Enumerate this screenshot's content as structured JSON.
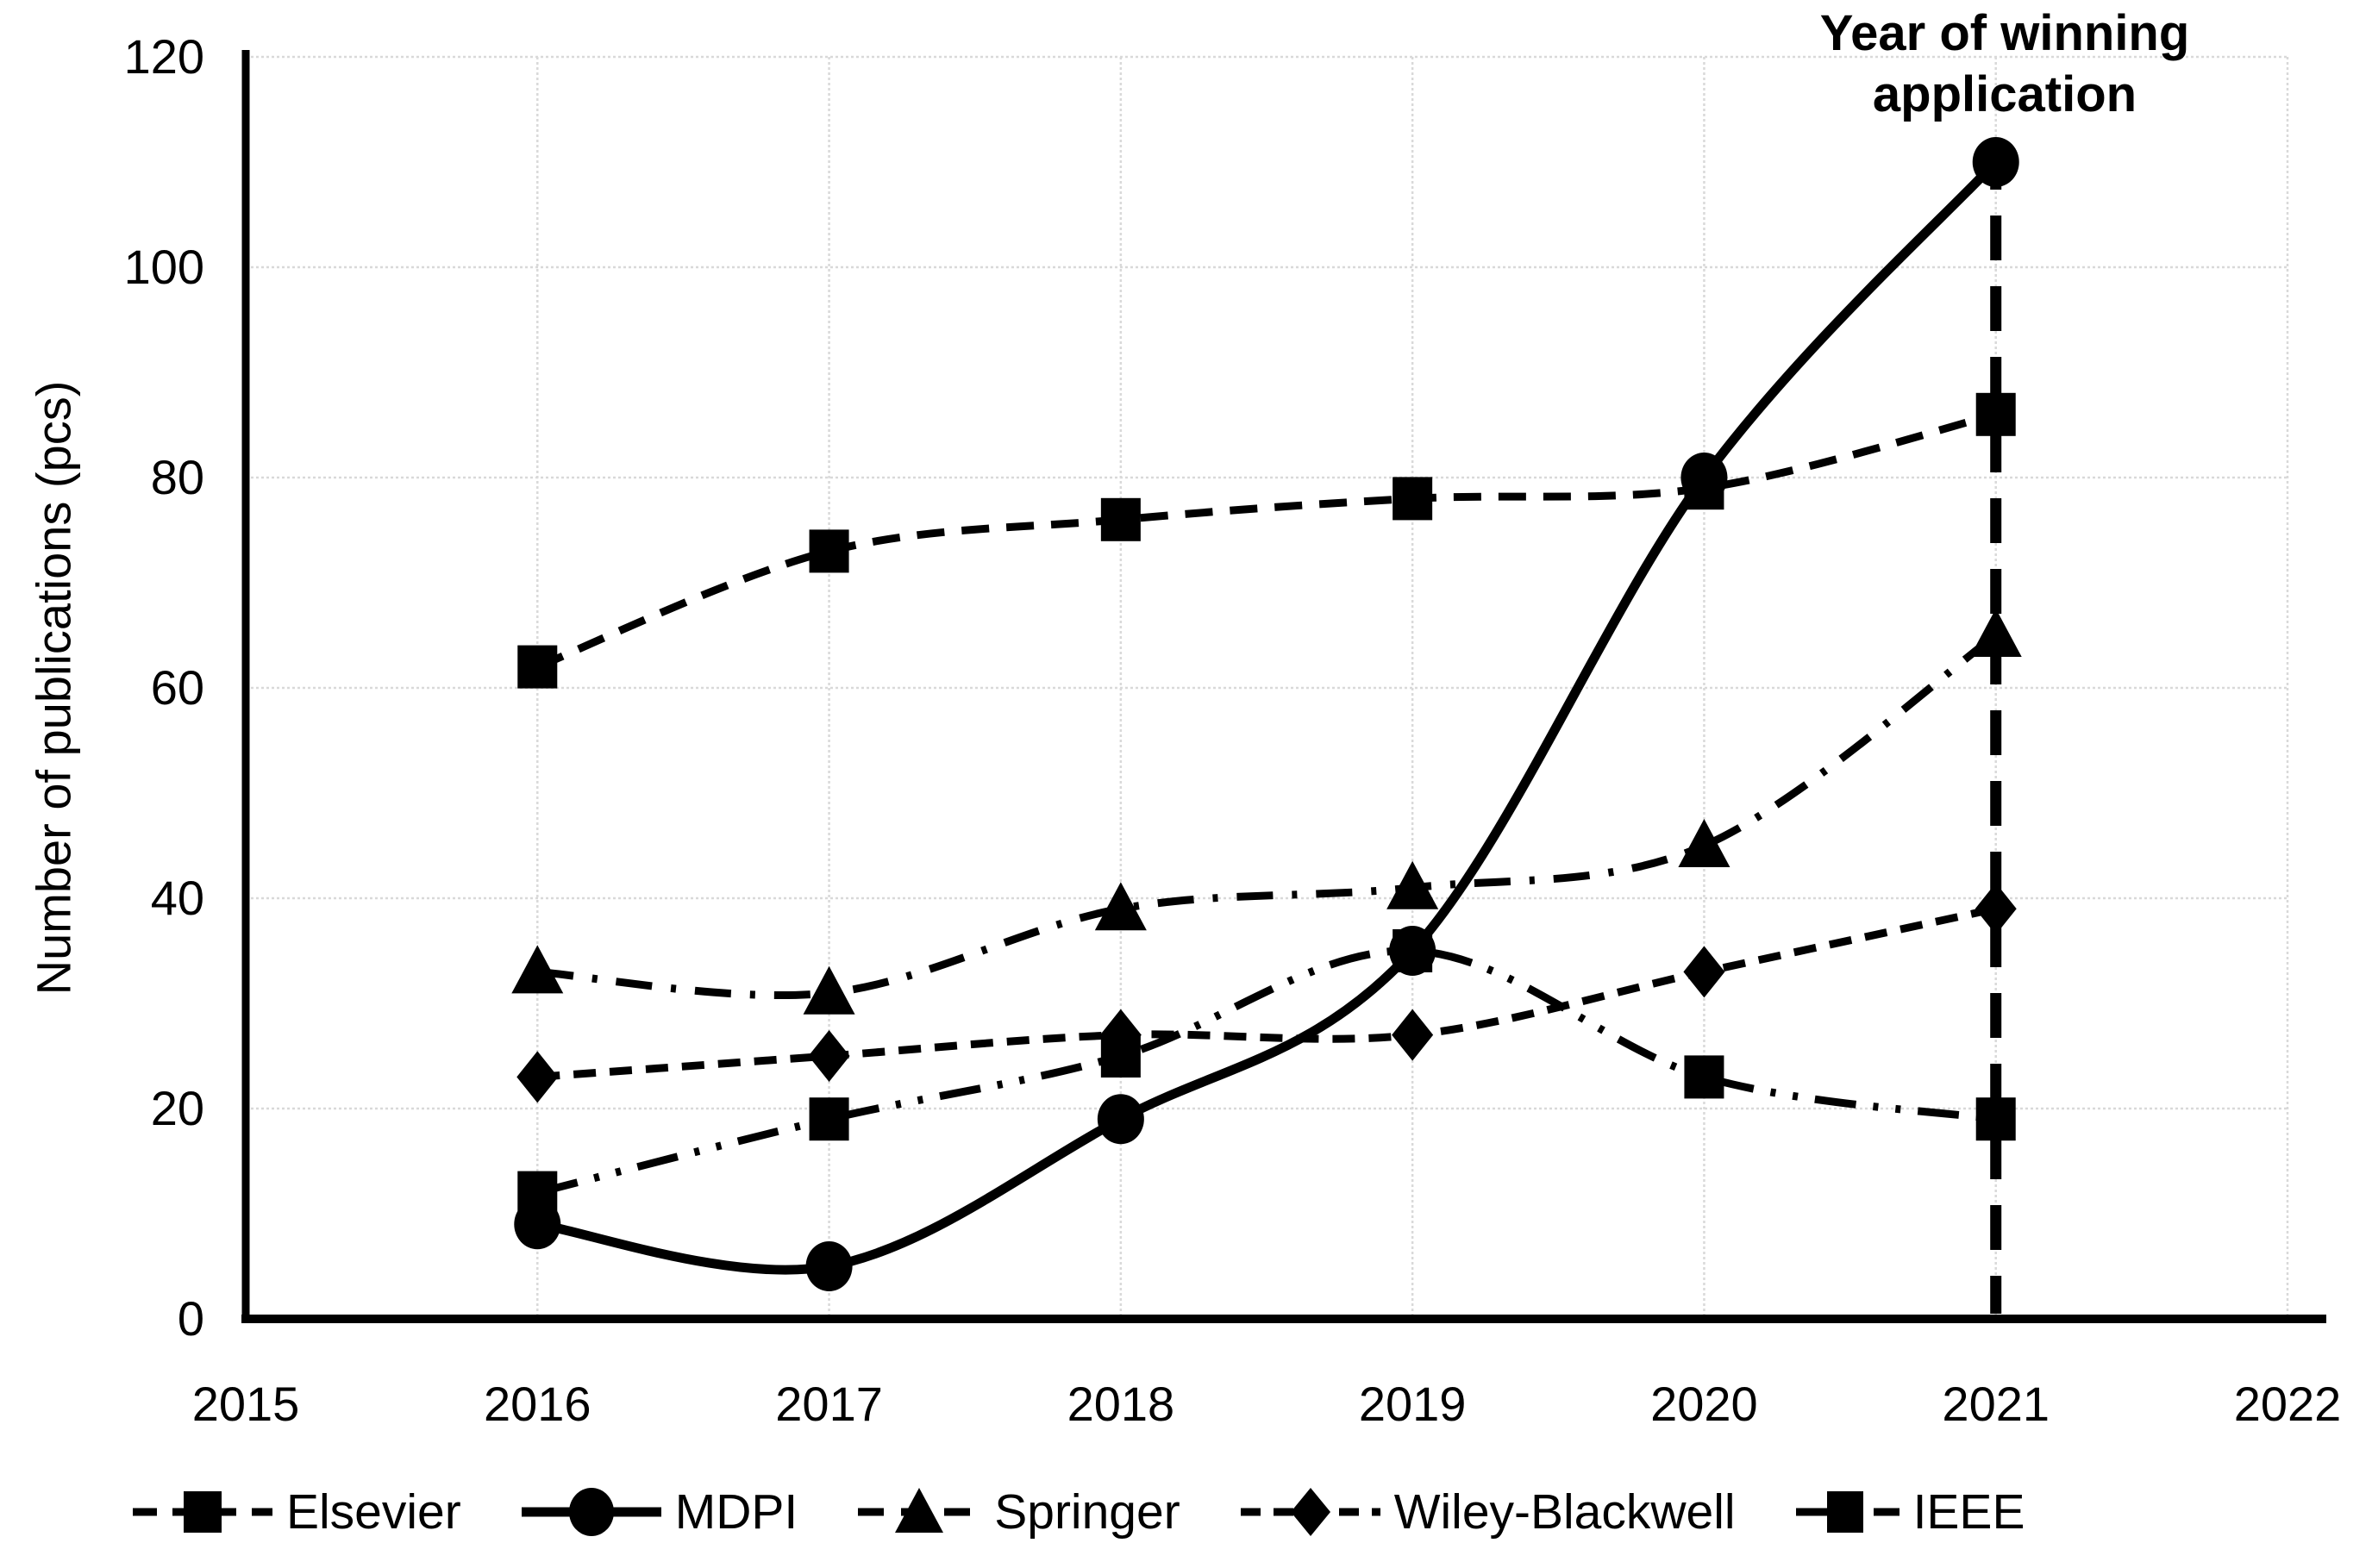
{
  "chart_data": {
    "type": "line",
    "title": "",
    "xlabel": "",
    "ylabel": "Number of publications (pcs)",
    "x": [
      2016,
      2017,
      2018,
      2019,
      2020,
      2021
    ],
    "xlim": [
      2015,
      2022
    ],
    "ylim": [
      0,
      120
    ],
    "x_ticks": [
      "2015",
      "2016",
      "2017",
      "2018",
      "2019",
      "2020",
      "2021",
      "2022"
    ],
    "y_ticks": [
      "0",
      "20",
      "40",
      "60",
      "80",
      "100",
      "120"
    ],
    "grid": true,
    "legend_position": "bottom",
    "series": [
      {
        "name": "Elsevier",
        "marker": "square",
        "line": "dashed",
        "values": [
          62,
          73,
          76,
          78,
          79,
          86
        ]
      },
      {
        "name": "MDPI",
        "marker": "circle",
        "line": "solid",
        "values": [
          9,
          5,
          19,
          35,
          80,
          110
        ]
      },
      {
        "name": "Springer",
        "marker": "triangle",
        "line": "dash-dot",
        "values": [
          33,
          31,
          39,
          41,
          45,
          65
        ]
      },
      {
        "name": "Wiley-Blackwell",
        "marker": "diamond",
        "line": "short-dash",
        "values": [
          23,
          25,
          27,
          27,
          33,
          39
        ]
      },
      {
        "name": "IEEE",
        "marker": "square",
        "line": "dash-dot-dot",
        "values": [
          12,
          19,
          25,
          35,
          23,
          19
        ]
      }
    ],
    "annotation": {
      "text_lines": [
        "Year of winning",
        "application"
      ],
      "x": 2021
    }
  },
  "colors": {
    "series": "#000000",
    "grid": "#d9d9d9",
    "axis": "#000000",
    "background": "#ffffff",
    "text": "#000000"
  }
}
